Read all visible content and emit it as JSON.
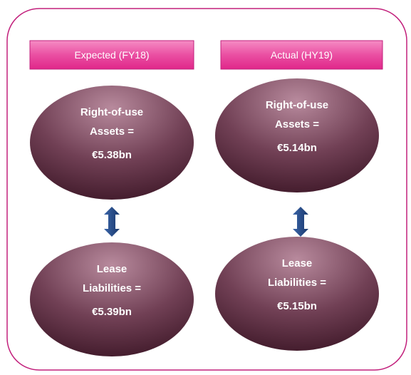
{
  "columns": [
    {
      "header": "Expected (FY18)",
      "assets": {
        "lines": [
          "Right-of-use",
          "Assets ="
        ],
        "value": "€5.38bn"
      },
      "liabilities": {
        "lines": [
          "Lease",
          "Liabilities ="
        ],
        "value": "€5.39bn"
      }
    },
    {
      "header": "Actual (HY19)",
      "assets": {
        "lines": [
          "Right-of-use",
          "Assets ="
        ],
        "value": "€5.14bn"
      },
      "liabilities": {
        "lines": [
          "Lease",
          "Liabilities ="
        ],
        "value": "€5.15bn"
      }
    }
  ]
}
